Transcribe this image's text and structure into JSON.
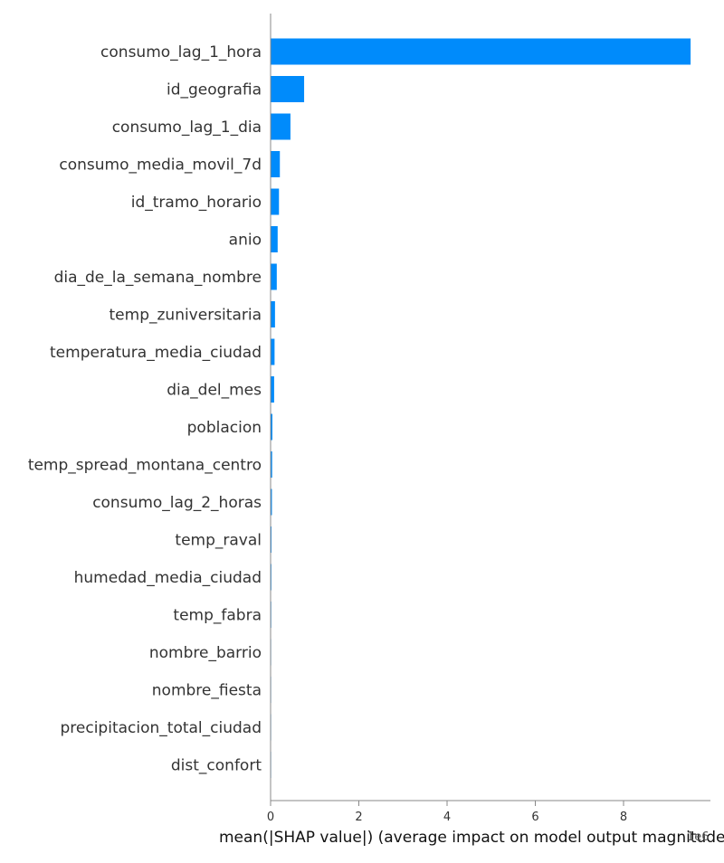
{
  "chart_data": {
    "type": "bar",
    "orientation": "horizontal",
    "categories": [
      "consumo_lag_1_hora",
      "id_geografia",
      "consumo_lag_1_dia",
      "consumo_media_movil_7d",
      "id_tramo_horario",
      "anio",
      "dia_de_la_semana_nombre",
      "temp_zuniversitaria",
      "temperatura_media_ciudad",
      "dia_del_mes",
      "poblacion",
      "temp_spread_montana_centro",
      "consumo_lag_2_horas",
      "temp_raval",
      "humedad_media_ciudad",
      "temp_fabra",
      "nombre_barrio",
      "nombre_fiesta",
      "precipitacion_total_ciudad",
      "dist_confort"
    ],
    "values": [
      9.52,
      0.76,
      0.45,
      0.21,
      0.19,
      0.16,
      0.14,
      0.1,
      0.09,
      0.08,
      0.04,
      0.035,
      0.03,
      0.02,
      0.018,
      0.015,
      0.006,
      0.005,
      0.004,
      0.003
    ],
    "xlabel": "mean(|SHAP value|) (average impact on model output magnitude)",
    "x_offset_label": "1e6",
    "xticks": [
      "0",
      "2",
      "4",
      "6",
      "8"
    ],
    "xlim": [
      0,
      10
    ],
    "ylabel": "",
    "grid": false,
    "bar_color": "#008bfb",
    "axis_color": "#888888"
  }
}
